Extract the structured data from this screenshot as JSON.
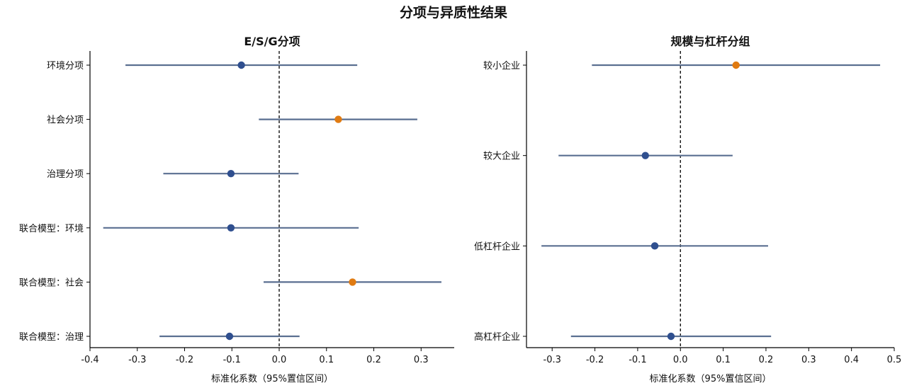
{
  "figure_title": "分项与异质性结果",
  "colors": {
    "default": "#2f4f8f",
    "highlight": "#e07b12",
    "ci_line": "#5a6f91",
    "axis": "#000000"
  },
  "chart_data": [
    {
      "type": "forest",
      "title": "E/S/G分项",
      "xlabel": "标准化系数（95%置信区间）",
      "xlim": [
        -0.4,
        0.37
      ],
      "xticks": [
        -0.4,
        -0.3,
        -0.2,
        -0.1,
        0,
        0.1,
        0.2,
        0.3
      ],
      "xtick_labels": [
        "-0.4",
        "-0.3",
        "-0.2",
        "-0.1",
        "0.0",
        "0.1",
        "0.2",
        "0.3"
      ],
      "reference_line": 0,
      "rows": [
        {
          "label": "环境分项",
          "estimate": -0.08,
          "lower": -0.325,
          "upper": 0.165,
          "highlight": false
        },
        {
          "label": "社会分项",
          "estimate": 0.125,
          "lower": -0.043,
          "upper": 0.292,
          "highlight": true
        },
        {
          "label": "治理分项",
          "estimate": -0.102,
          "lower": -0.245,
          "upper": 0.041,
          "highlight": false
        },
        {
          "label": "联合模型：环境",
          "estimate": -0.102,
          "lower": -0.372,
          "upper": 0.168,
          "highlight": false
        },
        {
          "label": "联合模型：社会",
          "estimate": 0.155,
          "lower": -0.033,
          "upper": 0.343,
          "highlight": true
        },
        {
          "label": "联合模型：治理",
          "estimate": -0.105,
          "lower": -0.253,
          "upper": 0.043,
          "highlight": false
        }
      ]
    },
    {
      "type": "forest",
      "title": "规模与杠杆分组",
      "xlabel": "标准化系数（95%置信区间）",
      "xlim": [
        -0.36,
        0.5
      ],
      "xticks": [
        -0.3,
        -0.2,
        -0.1,
        0,
        0.1,
        0.2,
        0.3,
        0.4,
        0.5
      ],
      "xtick_labels": [
        "-0.3",
        "-0.2",
        "-0.1",
        "0.0",
        "0.1",
        "0.2",
        "0.3",
        "0.4",
        "0.5"
      ],
      "reference_line": 0,
      "rows": [
        {
          "label": "较小企业",
          "estimate": 0.13,
          "lower": -0.207,
          "upper": 0.467,
          "highlight": true
        },
        {
          "label": "较大企业",
          "estimate": -0.082,
          "lower": -0.285,
          "upper": 0.122,
          "highlight": false
        },
        {
          "label": "低杠杆企业",
          "estimate": -0.06,
          "lower": -0.325,
          "upper": 0.205,
          "highlight": false
        },
        {
          "label": "高杠杆企业",
          "estimate": -0.022,
          "lower": -0.256,
          "upper": 0.212,
          "highlight": false
        }
      ]
    }
  ]
}
